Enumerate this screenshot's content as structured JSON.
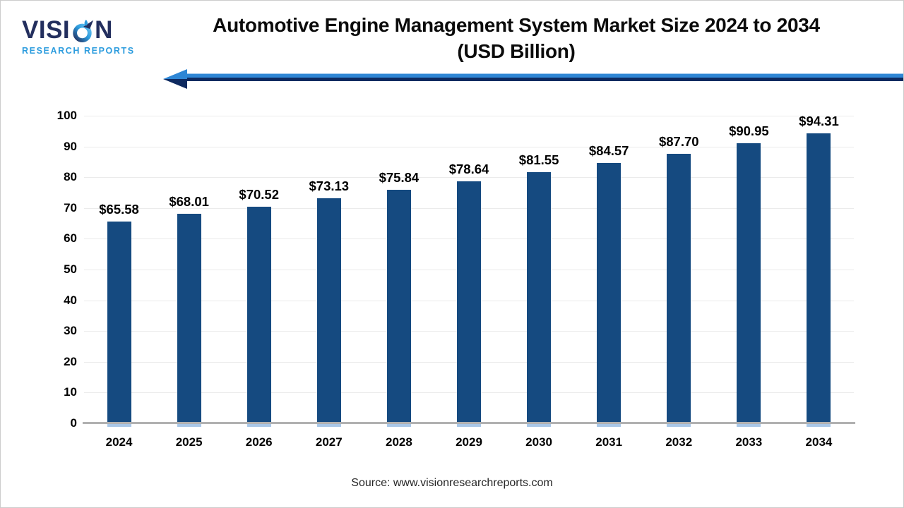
{
  "logo": {
    "brand_prefix": "VISI",
    "brand_suffix": "N",
    "tagline": "RESEARCH REPORTS"
  },
  "title": {
    "line1": "Automotive Engine Management System Market Size 2024 to 2034",
    "line2": "(USD Billion)"
  },
  "source": "Source: www.visionresearchreports.com",
  "colors": {
    "bar": "#154A80",
    "bar_bottom_tab": "#A9C7E7",
    "gridline": "#ebebeb",
    "axis_line": "#b1b1b1",
    "arrow_light_blue": "#2E86D5",
    "arrow_dark_navy": "#0E2A60",
    "logo_navy": "#232F5E",
    "logo_blue": "#2C9CDE",
    "label_text": "#000000"
  },
  "chart_data": {
    "type": "bar",
    "title": "Automotive Engine Management System Market Size 2024 to 2034 (USD Billion)",
    "categories": [
      "2024",
      "2025",
      "2026",
      "2027",
      "2028",
      "2029",
      "2030",
      "2031",
      "2032",
      "2033",
      "2034"
    ],
    "values": [
      65.58,
      68.01,
      70.52,
      73.13,
      75.84,
      78.64,
      81.55,
      84.57,
      87.7,
      90.95,
      94.31
    ],
    "value_labels": [
      "$65.58",
      "$68.01",
      "$70.52",
      "$73.13",
      "$75.84",
      "$78.64",
      "$81.55",
      "$84.57",
      "$87.70",
      "$90.95",
      "$94.31"
    ],
    "xlabel": "",
    "ylabel": "",
    "ylim": [
      0,
      100
    ],
    "ytick_step": 10,
    "ytick_labels": [
      "0",
      "10",
      "20",
      "30",
      "40",
      "50",
      "60",
      "70",
      "80",
      "90",
      "100"
    ],
    "grid": true,
    "legend": false,
    "bar_color": "#154A80"
  }
}
